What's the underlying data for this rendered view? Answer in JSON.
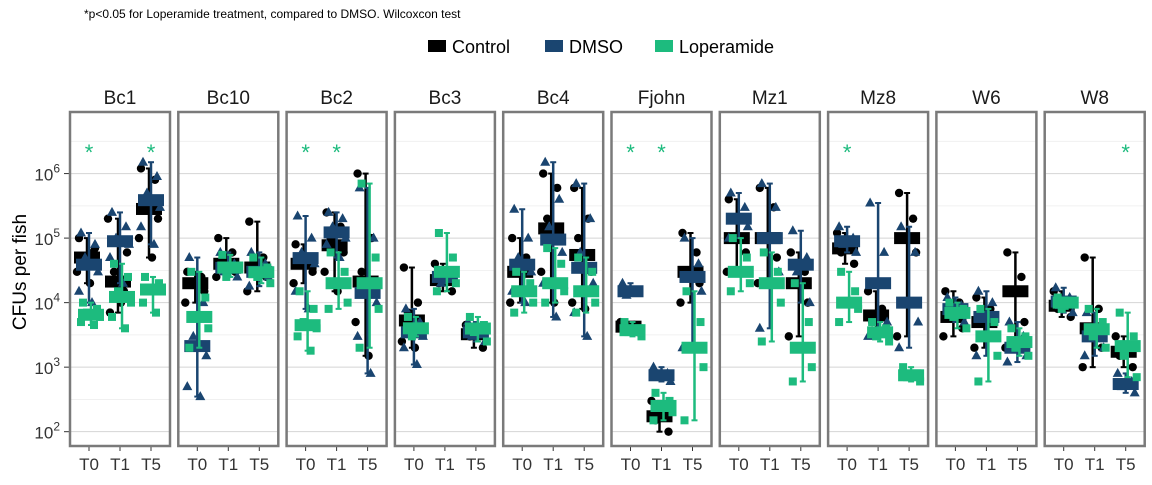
{
  "chart_data": {
    "type": "scatter",
    "note": "*p<0.05 for Loperamide treatment, compared to DMSO. Wilcoxcon test",
    "ylabel": "CFUs per fish",
    "yscale": "log10",
    "ylim": [
      60,
      9000000
    ],
    "yticks": [
      {
        "value": 100,
        "base": "10",
        "exp": "2"
      },
      {
        "value": 1000,
        "base": "10",
        "exp": "3"
      },
      {
        "value": 10000,
        "base": "10",
        "exp": "4"
      },
      {
        "value": 100000,
        "base": "10",
        "exp": "5"
      },
      {
        "value": 1000000,
        "base": "10",
        "exp": "6"
      }
    ],
    "timepoints": [
      "T0",
      "T1",
      "T5"
    ],
    "legend": {
      "position": "top",
      "entries": [
        {
          "name": "Control",
          "color": "#000000",
          "shape": "circle"
        },
        {
          "name": "DMSO",
          "color": "#1a4570",
          "shape": "triangle"
        },
        {
          "name": "Loperamide",
          "color": "#1dbb7e",
          "shape": "square"
        }
      ]
    },
    "star_symbol": "*",
    "grid": true,
    "facets": [
      {
        "name": "Bc1",
        "Control": {
          "T0": [
            100000,
            60000,
            50000,
            40000,
            30000,
            20000,
            70000
          ],
          "T1": [
            7000,
            15000,
            30000,
            60000,
            200000,
            10000
          ],
          "T5": [
            1200000,
            800000,
            400000,
            200000,
            100000,
            50000
          ]
        },
        "DMSO": {
          "T0": [
            120000,
            80000,
            50000,
            30000,
            15000,
            10000
          ],
          "T1": [
            250000,
            150000,
            100000,
            80000,
            50000,
            20000
          ],
          "T5": [
            1500000,
            900000,
            500000,
            300000,
            150000,
            80000
          ]
        },
        "Loperamide": {
          "T0": [
            10000,
            8000,
            7000,
            6000,
            5000,
            4500
          ],
          "T1": [
            40000,
            25000,
            15000,
            10000,
            6000,
            4000
          ],
          "T5": [
            25000,
            20000,
            17000,
            15000,
            10000,
            7000
          ]
        },
        "stars": [
          "T0",
          "T5"
        ]
      },
      {
        "name": "Bc10",
        "Control": {
          "T0": [
            30000,
            25000,
            20000,
            15000,
            10000
          ],
          "T1": [
            100000,
            60000,
            40000,
            30000,
            25000
          ],
          "T5": [
            180000,
            50000,
            35000,
            25000,
            15000
          ]
        },
        "DMSO": {
          "T0": [
            50000,
            10000,
            3000,
            1500,
            500,
            350
          ],
          "T1": [
            60000,
            40000,
            30000,
            25000
          ],
          "T5": [
            60000,
            40000,
            30000,
            25000,
            18000
          ]
        },
        "Loperamide": {
          "T0": [
            30000,
            12000,
            6000,
            4000,
            2000
          ],
          "T1": [
            55000,
            35000,
            25000
          ],
          "T5": [
            50000,
            35000,
            25000,
            20000
          ]
        },
        "stars": []
      },
      {
        "name": "Bc2",
        "Control": {
          "T0": [
            80000,
            50000,
            40000,
            30000,
            20000
          ],
          "T1": [
            250000,
            150000,
            100000,
            60000,
            30000,
            15000
          ],
          "T5": [
            1000000,
            100000,
            30000,
            15000,
            5000,
            1500
          ]
        },
        "DMSO": {
          "T0": [
            220000,
            100000,
            60000,
            40000,
            15000,
            8000
          ],
          "T1": [
            250000,
            200000,
            150000,
            100000,
            80000,
            50000
          ],
          "T5": [
            600000,
            100000,
            20000,
            10000,
            3000,
            800
          ]
        },
        "Loperamide": {
          "T0": [
            15000,
            8000,
            5000,
            4000,
            3000,
            1800
          ],
          "T1": [
            60000,
            30000,
            20000,
            10000,
            8000
          ],
          "T5": [
            700000,
            50000,
            20000,
            8000,
            2000
          ]
        },
        "stars": [
          "T0",
          "T1"
        ]
      },
      {
        "name": "Bc3",
        "Control": {
          "T0": [
            35000,
            10000,
            7000,
            4000,
            2500,
            2000
          ],
          "T1": [
            40000,
            25000,
            20000,
            15000
          ],
          "T5": [
            4500,
            3500,
            3000,
            2000
          ]
        },
        "DMSO": {
          "T0": [
            8000,
            5000,
            4000,
            3000,
            2000,
            1100
          ],
          "T1": [
            30000,
            25000,
            20000
          ],
          "T5": [
            5000,
            4000,
            3000,
            2500
          ]
        },
        "Loperamide": {
          "T0": [
            6000,
            4000,
            3000
          ],
          "T1": [
            120000,
            50000,
            30000,
            20000,
            15000
          ],
          "T5": [
            6000,
            4500,
            3500,
            2500
          ]
        },
        "stars": []
      },
      {
        "name": "Bc4",
        "Control": {
          "T0": [
            100000,
            50000,
            30000,
            15000,
            10000
          ],
          "T1": [
            1000000,
            600000,
            200000,
            100000,
            30000,
            10000
          ],
          "T5": [
            600000,
            200000,
            100000,
            30000,
            10000,
            8000
          ]
        },
        "DMSO": {
          "T0": [
            280000,
            100000,
            50000,
            30000,
            15000,
            10000
          ],
          "T1": [
            1500000,
            400000,
            150000,
            60000,
            20000,
            6000
          ],
          "T5": [
            700000,
            200000,
            60000,
            20000,
            7000,
            3000
          ]
        },
        "Loperamide": {
          "T0": [
            30000,
            20000,
            15000,
            10000,
            7000
          ],
          "T1": [
            70000,
            40000,
            20000,
            15000,
            10000
          ],
          "T5": [
            50000,
            30000,
            15000,
            10000,
            7000
          ]
        },
        "stars": []
      },
      {
        "name": "Fjohn",
        "Control": {
          "T0": [
            5000,
            4500,
            4000,
            3500
          ],
          "T1": [
            300,
            200,
            150,
            100
          ],
          "T5": [
            120000,
            60000,
            30000,
            20000,
            10000
          ]
        },
        "DMSO": {
          "T0": [
            20000,
            15000,
            13000
          ],
          "T1": [
            1000,
            800,
            700,
            600
          ],
          "T5": [
            100000,
            40000,
            25000,
            15000,
            2000
          ]
        },
        "Loperamide": {
          "T0": [
            5000,
            4000,
            3500,
            3000
          ],
          "T1": [
            400,
            300,
            250,
            200,
            150
          ],
          "T5": [
            15000,
            5000,
            2000,
            1000,
            150
          ]
        },
        "stars": [
          "T0",
          "T1"
        ]
      },
      {
        "name": "Mz1",
        "Control": {
          "T0": [
            400000,
            200000,
            100000,
            60000,
            30000
          ],
          "T1": [
            600000,
            300000,
            100000,
            50000,
            20000
          ],
          "T5": [
            60000,
            30000,
            20000,
            10000,
            3000
          ]
        },
        "DMSO": {
          "T0": [
            500000,
            300000,
            200000,
            150000,
            100000
          ],
          "T1": [
            700000,
            300000,
            100000,
            30000,
            4000
          ],
          "T5": [
            130000,
            50000,
            30000,
            10000
          ]
        },
        "Loperamide": {
          "T0": [
            100000,
            50000,
            30000,
            20000,
            15000
          ],
          "T1": [
            60000,
            30000,
            20000,
            10000,
            2500
          ],
          "T5": [
            20000,
            5000,
            2000,
            1000,
            600
          ]
        },
        "stars": []
      },
      {
        "name": "Mz8",
        "Control": {
          "T0": [
            120000,
            80000,
            60000,
            40000
          ],
          "T1": [
            15000,
            8000,
            5000,
            3500
          ],
          "T5": [
            500000,
            200000,
            100000,
            60000,
            3000
          ]
        },
        "DMSO": {
          "T0": [
            150000,
            100000,
            80000,
            60000
          ],
          "T1": [
            350000,
            60000,
            20000,
            5000,
            3000
          ],
          "T5": [
            150000,
            60000,
            10000,
            5000,
            2000
          ]
        },
        "Loperamide": {
          "T0": [
            30000,
            15000,
            10000,
            8000,
            5000
          ],
          "T1": [
            5000,
            4000,
            3000,
            2500
          ],
          "T5": [
            1000,
            800,
            700,
            600
          ]
        },
        "stars": [
          "T0"
        ]
      },
      {
        "name": "W6",
        "Control": {
          "T0": [
            15000,
            10000,
            6000,
            4000,
            3000
          ],
          "T1": [
            12000,
            8000,
            5000,
            3000,
            2000
          ],
          "T5": [
            60000,
            25000,
            15000,
            5000,
            2000
          ]
        },
        "DMSO": {
          "T0": [
            12000,
            9000,
            7000,
            5000
          ],
          "T1": [
            15000,
            10000,
            6000,
            3000,
            1500
          ],
          "T5": [
            5000,
            3000,
            2000,
            1500,
            1200
          ]
        },
        "Loperamide": {
          "T0": [
            10000,
            8000,
            6000,
            4000
          ],
          "T1": [
            8000,
            5000,
            3000,
            1500,
            600
          ],
          "T5": [
            4000,
            3000,
            2000,
            1500
          ]
        },
        "stars": []
      },
      {
        "name": "W8",
        "Control": {
          "T0": [
            15000,
            10000,
            8000,
            6000
          ],
          "T1": [
            50000,
            8000,
            4000,
            2000,
            1000
          ],
          "T5": [
            3000,
            2000,
            1500,
            1000
          ]
        },
        "DMSO": {
          "T0": [
            17000,
            12000,
            9000,
            7000
          ],
          "T1": [
            7000,
            4000,
            3000,
            2000,
            1500
          ],
          "T5": [
            800,
            600,
            500,
            400
          ]
        },
        "Loperamide": {
          "T0": [
            12000,
            10000,
            8000
          ],
          "T1": [
            8000,
            5000,
            3000,
            2000
          ],
          "T5": [
            7000,
            3000,
            1500,
            700
          ]
        },
        "stars": [
          "T5"
        ]
      }
    ]
  }
}
